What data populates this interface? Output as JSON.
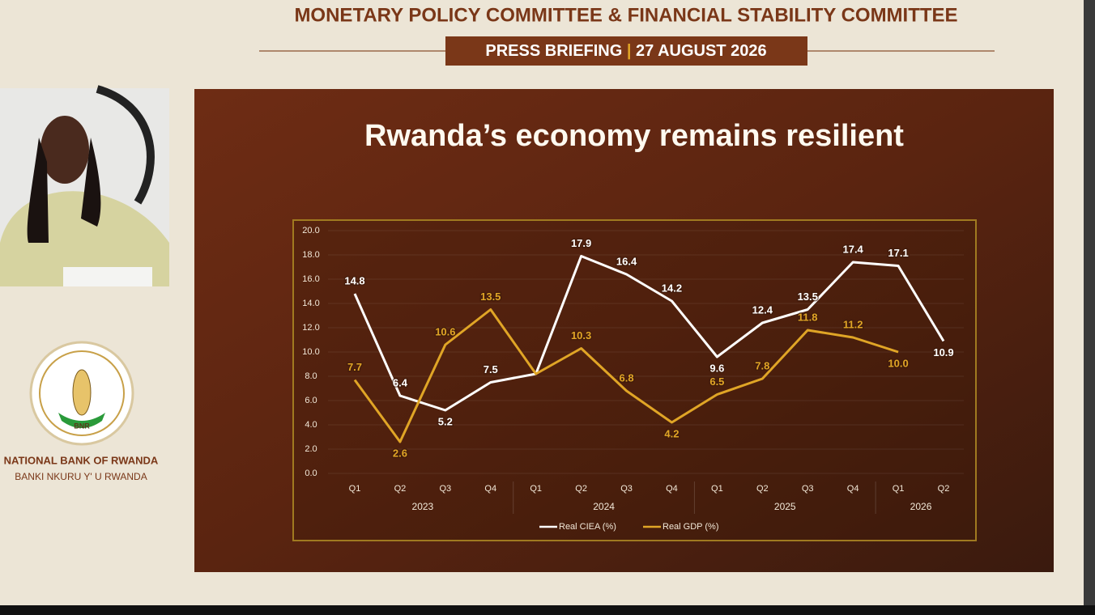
{
  "header": {
    "title": "MONETARY POLICY COMMITTEE & FINANCIAL STABILITY COMMITTEE",
    "banner_left": "PRESS BRIEFING",
    "banner_separator": "|",
    "banner_right": "27 AUGUST 2026"
  },
  "bank": {
    "logo_text": "BNR",
    "name": "NATIONAL BANK OF RWANDA",
    "name_local": "BANKI NKURU Y' U RWANDA"
  },
  "chart_data": {
    "type": "line",
    "title": "Rwanda’s economy remains resilient",
    "categories": [
      "Q1",
      "Q2",
      "Q3",
      "Q4",
      "Q1",
      "Q2",
      "Q3",
      "Q4",
      "Q1",
      "Q2",
      "Q3",
      "Q4",
      "Q1",
      "Q2"
    ],
    "groups": [
      {
        "label": "2023",
        "span": 4
      },
      {
        "label": "2024",
        "span": 4
      },
      {
        "label": "2025",
        "span": 4
      },
      {
        "label": "2026",
        "span": 2
      }
    ],
    "series": [
      {
        "name": "Real CIEA (%)",
        "color": "#ffffff",
        "values": [
          14.8,
          6.4,
          5.2,
          7.5,
          8.2,
          17.9,
          16.4,
          14.2,
          9.6,
          12.4,
          13.5,
          17.4,
          17.1,
          10.9
        ],
        "value_labels": [
          "14.8",
          "6.4",
          "5.2",
          "7.5",
          null,
          "17.9",
          "16.4",
          "14.2",
          "9.6",
          "12.4",
          "13.5",
          "17.4",
          "17.1",
          "10.9"
        ]
      },
      {
        "name": "Real GDP (%)",
        "color": "#e0a526",
        "values": [
          7.7,
          2.6,
          10.6,
          13.5,
          8.2,
          10.3,
          6.8,
          4.2,
          6.5,
          7.8,
          11.8,
          11.2,
          10.0,
          null
        ],
        "value_labels": [
          "7.7",
          "2.6",
          "10.6",
          "13.5",
          null,
          "10.3",
          "6.8",
          "4.2",
          "6.5",
          "7.8",
          "11.8",
          "11.2",
          "10.0",
          null
        ]
      }
    ],
    "ylim": [
      0,
      20
    ],
    "yticks": [
      {
        "value": 0,
        "label": "0.0"
      },
      {
        "value": 2,
        "label": "2.0"
      },
      {
        "value": 4,
        "label": "4.0"
      },
      {
        "value": 6,
        "label": "6.0"
      },
      {
        "value": 8,
        "label": "8.0"
      },
      {
        "value": 10,
        "label": "10.0"
      },
      {
        "value": 12,
        "label": "12.0"
      },
      {
        "value": 14,
        "label": "14.0"
      },
      {
        "value": 16,
        "label": "16.0"
      },
      {
        "value": 18,
        "label": "18.0"
      },
      {
        "value": 20,
        "label": "20.0"
      }
    ],
    "grid": true,
    "legend": "bottom"
  }
}
